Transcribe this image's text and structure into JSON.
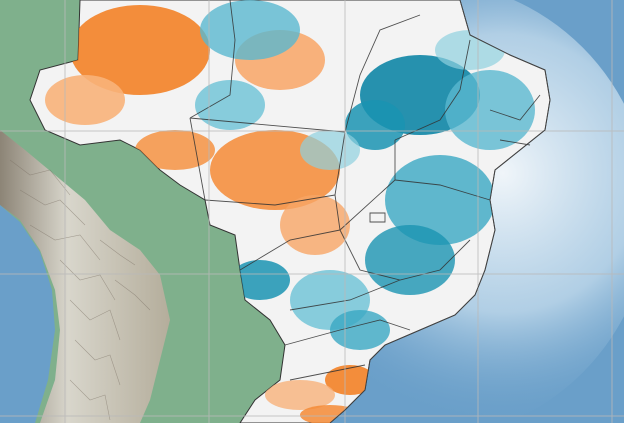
{
  "map": {
    "colors": {
      "ocean": "#6a9fc9",
      "ocean_light": "#cfe3f1",
      "land_green": "#7fb08c",
      "andes_light": "#d8d2c6",
      "andes_dark": "#8d8275",
      "wet_blue": "#0f86a6",
      "wet_light": "#8fd0de",
      "dry_orange": "#f27a1a",
      "dry_light": "#f8c9a0",
      "neutral": "#f3f3f3",
      "border": "#333333",
      "grid": "#b9b9b9"
    }
  }
}
